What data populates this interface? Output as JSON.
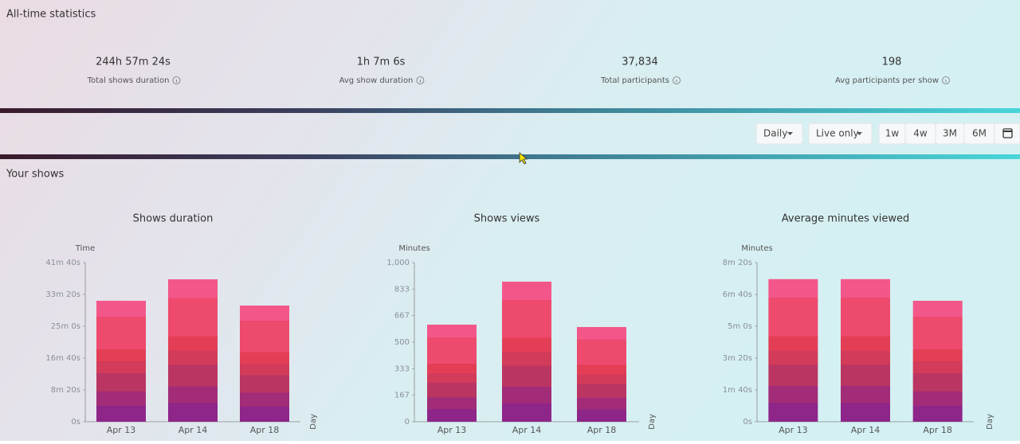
{
  "header": {
    "title": "All-time statistics"
  },
  "stats": [
    {
      "value": "244h 57m 24s",
      "label": "Total shows duration"
    },
    {
      "value": "1h 7m 6s",
      "label": "Avg show duration"
    },
    {
      "value": "37,834",
      "label": "Total participants"
    },
    {
      "value": "198",
      "label": "Avg participants per show"
    }
  ],
  "controls": {
    "granularity": "Daily",
    "filter": "Live only",
    "ranges": [
      "1w",
      "4w",
      "3M",
      "6M"
    ]
  },
  "section": {
    "title": "Your shows"
  },
  "chart_data": [
    {
      "type": "bar",
      "title": "Shows duration",
      "y_label": "Time",
      "x_label": "Day",
      "categories": [
        "Apr 13",
        "Apr 14",
        "Apr 18"
      ],
      "values": [
        1900,
        2237,
        1825
      ],
      "ylim": [
        0,
        2500
      ],
      "yticks": [
        {
          "value": 0,
          "label": "0s"
        },
        {
          "value": 500,
          "label": "8m 20s"
        },
        {
          "value": 1000,
          "label": "16m 40s"
        },
        {
          "value": 1500,
          "label": "25m 0s"
        },
        {
          "value": 2000,
          "label": "33m 20s"
        },
        {
          "value": 2500,
          "label": "41m 40s"
        }
      ]
    },
    {
      "type": "bar",
      "title": "Shows views",
      "y_label": "Minutes",
      "x_label": "Day",
      "categories": [
        "Apr 13",
        "Apr 14",
        "Apr 18"
      ],
      "values": [
        610,
        880,
        595
      ],
      "ylim": [
        0,
        1000
      ],
      "yticks": [
        0,
        167,
        333,
        500,
        667,
        833,
        {
          "value": 1000,
          "label": "1,000"
        }
      ]
    },
    {
      "type": "bar",
      "title": "Average minutes viewed",
      "y_label": "Minutes",
      "x_label": "Day",
      "categories": [
        "Apr 13",
        "Apr 14",
        "Apr 18"
      ],
      "values": [
        448,
        448,
        380
      ],
      "ylim": [
        0,
        500
      ],
      "yticks": [
        {
          "value": 0,
          "label": "0s"
        },
        {
          "value": 100,
          "label": "1m 40s"
        },
        {
          "value": 200,
          "label": "3m 20s"
        },
        {
          "value": 300,
          "label": "5m 0s"
        },
        {
          "value": 400,
          "label": "6m 40s"
        },
        {
          "value": 500,
          "label": "8m 20s"
        }
      ]
    }
  ]
}
